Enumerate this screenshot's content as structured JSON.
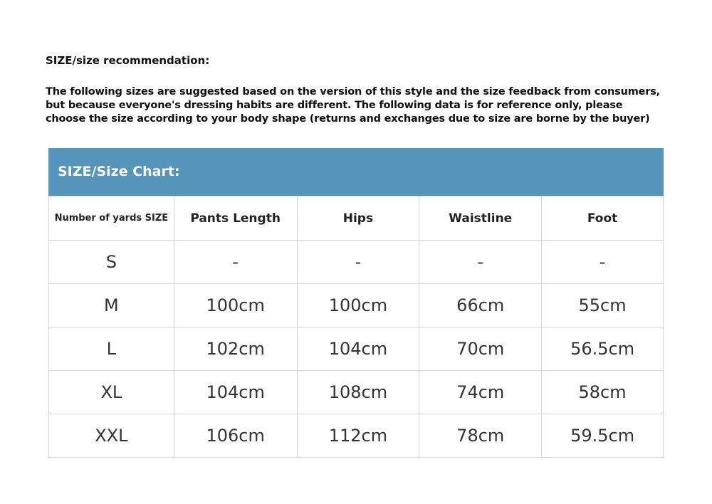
{
  "title": "SIZE/size recommendation:",
  "intro": [
    "The following sizes are suggested based on the version of this style and the size feedback from consumers,",
    "but because everyone's dressing habits are different. The following data is for reference only, please",
    "choose the size according to your body shape (returns and exchanges due to size are borne by the buyer)"
  ],
  "chart_title": "SIZE/Size Chart:",
  "header_color": "#5594bb",
  "columns": [
    "Number of yards SIZE",
    "Pants Length",
    "Hips",
    "Waistline",
    "Foot"
  ],
  "rows": [
    [
      "S",
      "-",
      "-",
      "-",
      "-"
    ],
    [
      "M",
      "100cm",
      "100cm",
      "66cm",
      "55cm"
    ],
    [
      "L",
      "102cm",
      "104cm",
      "70cm",
      "56.5cm"
    ],
    [
      "XL",
      "104cm",
      "108cm",
      "74cm",
      "58cm"
    ],
    [
      "XXL",
      "106cm",
      "112cm",
      "78cm",
      "59.5cm"
    ]
  ]
}
